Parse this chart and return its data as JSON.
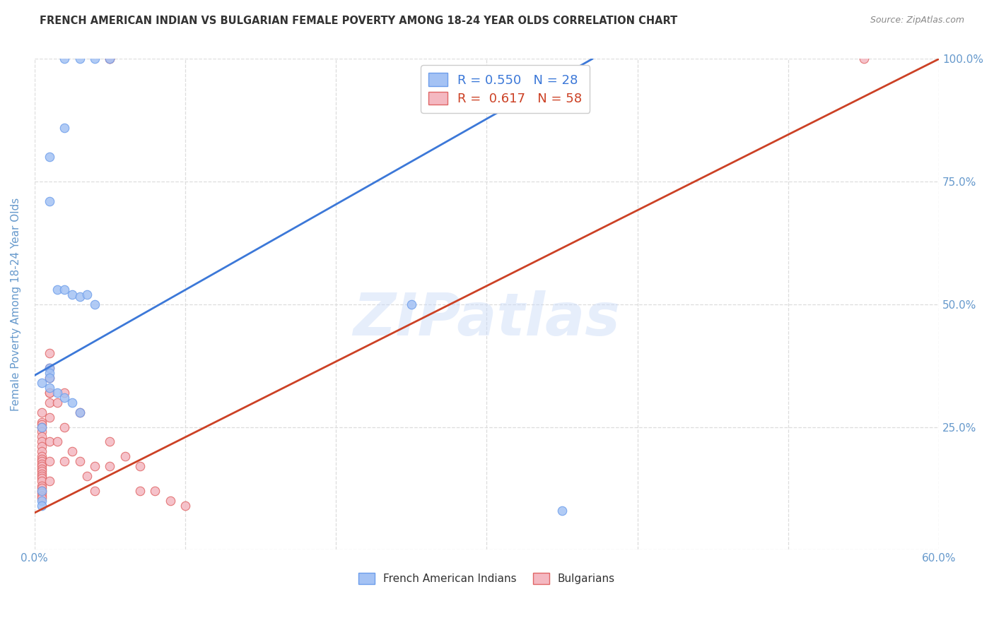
{
  "title": "FRENCH AMERICAN INDIAN VS BULGARIAN FEMALE POVERTY AMONG 18-24 YEAR OLDS CORRELATION CHART",
  "source": "Source: ZipAtlas.com",
  "ylabel": "Female Poverty Among 18-24 Year Olds",
  "xlim": [
    0.0,
    0.6
  ],
  "ylim": [
    0.0,
    1.0
  ],
  "xticks": [
    0.0,
    0.1,
    0.2,
    0.3,
    0.4,
    0.5,
    0.6
  ],
  "xticklabels": [
    "0.0%",
    "",
    "",
    "",
    "",
    "",
    "60.0%"
  ],
  "yticks": [
    0.0,
    0.25,
    0.5,
    0.75,
    1.0
  ],
  "yticklabels": [
    "",
    "25.0%",
    "50.0%",
    "75.0%",
    "100.0%"
  ],
  "blue_color": "#a4c2f4",
  "pink_color": "#f4b8c1",
  "blue_edge_color": "#6d9eeb",
  "pink_edge_color": "#e06666",
  "blue_line_color": "#3c78d8",
  "pink_line_color": "#cc4125",
  "watermark": "ZIPatlas",
  "legend_r_blue": "0.550",
  "legend_n_blue": "28",
  "legend_r_pink": "0.617",
  "legend_n_pink": "58",
  "blue_scatter_x": [
    0.02,
    0.03,
    0.05,
    0.04,
    0.02,
    0.01,
    0.01,
    0.015,
    0.02,
    0.025,
    0.03,
    0.035,
    0.04,
    0.25,
    0.01,
    0.01,
    0.01,
    0.005,
    0.01,
    0.015,
    0.02,
    0.025,
    0.03,
    0.005,
    0.005,
    0.005,
    0.005,
    0.35
  ],
  "blue_scatter_y": [
    1.0,
    1.0,
    1.0,
    1.0,
    0.86,
    0.8,
    0.71,
    0.53,
    0.53,
    0.52,
    0.515,
    0.52,
    0.5,
    0.5,
    0.37,
    0.36,
    0.35,
    0.34,
    0.33,
    0.32,
    0.31,
    0.3,
    0.28,
    0.25,
    0.12,
    0.1,
    0.09,
    0.08
  ],
  "pink_scatter_x": [
    0.05,
    0.05,
    0.01,
    0.01,
    0.01,
    0.01,
    0.005,
    0.005,
    0.005,
    0.005,
    0.005,
    0.005,
    0.005,
    0.005,
    0.005,
    0.005,
    0.005,
    0.005,
    0.005,
    0.005,
    0.005,
    0.005,
    0.005,
    0.005,
    0.005,
    0.005,
    0.005,
    0.005,
    0.005,
    0.005,
    0.005,
    0.005,
    0.01,
    0.01,
    0.01,
    0.01,
    0.01,
    0.015,
    0.015,
    0.02,
    0.02,
    0.02,
    0.025,
    0.03,
    0.03,
    0.035,
    0.04,
    0.04,
    0.05,
    0.05,
    0.06,
    0.07,
    0.07,
    0.08,
    0.09,
    0.1,
    0.01,
    0.55
  ],
  "pink_scatter_y": [
    1.0,
    1.0,
    0.37,
    0.35,
    0.32,
    0.3,
    0.28,
    0.26,
    0.255,
    0.25,
    0.24,
    0.23,
    0.22,
    0.21,
    0.2,
    0.19,
    0.185,
    0.18,
    0.175,
    0.17,
    0.165,
    0.16,
    0.155,
    0.15,
    0.145,
    0.14,
    0.13,
    0.125,
    0.12,
    0.115,
    0.11,
    0.105,
    0.32,
    0.27,
    0.22,
    0.18,
    0.14,
    0.3,
    0.22,
    0.32,
    0.25,
    0.18,
    0.2,
    0.28,
    0.18,
    0.15,
    0.17,
    0.12,
    0.22,
    0.17,
    0.19,
    0.17,
    0.12,
    0.12,
    0.1,
    0.09,
    0.4,
    1.0
  ],
  "blue_line_x": [
    0.0,
    0.37
  ],
  "blue_line_y": [
    0.355,
    1.0
  ],
  "pink_line_x": [
    0.0,
    0.6
  ],
  "pink_line_y": [
    0.075,
    1.0
  ],
  "background_color": "#ffffff",
  "grid_color": "#dddddd",
  "title_color": "#333333",
  "axis_color": "#6699cc",
  "marker_size": 9
}
